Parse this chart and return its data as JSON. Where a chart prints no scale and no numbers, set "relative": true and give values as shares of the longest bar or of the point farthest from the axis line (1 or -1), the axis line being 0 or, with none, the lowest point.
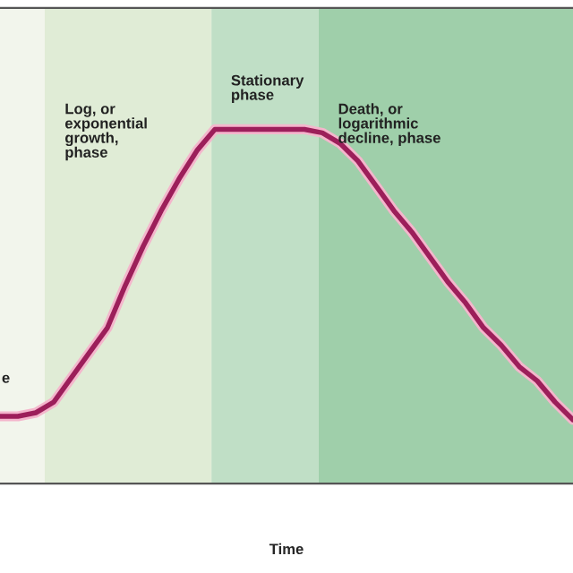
{
  "chart_data": {
    "type": "line",
    "xlabel": "Time",
    "relative": true,
    "legend": false,
    "marker": "none",
    "line_style": "solid",
    "categories": [
      null,
      null,
      null,
      null,
      null,
      null,
      null,
      null,
      null,
      null,
      null,
      null,
      null,
      null,
      null,
      null,
      null,
      null,
      null,
      null,
      null,
      null,
      null,
      null,
      null,
      null,
      null,
      null,
      null,
      null,
      null,
      null,
      null
    ],
    "series": [
      {
        "color": "#9c1f5a",
        "values": [
          0.19,
          0.19,
          0.2,
          0.23,
          0.3,
          0.37,
          0.44,
          0.56,
          0.67,
          0.77,
          0.86,
          0.94,
          1,
          1,
          1,
          1,
          1,
          1,
          0.99,
          0.96,
          0.91,
          0.84,
          0.77,
          0.71,
          0.64,
          0.57,
          0.51,
          0.44,
          0.39,
          0.33,
          0.29,
          0.23,
          0.18
        ]
      }
    ],
    "annotations": [
      "e",
      "Log, or\nexponential\ngrowth,\nphase",
      "Stationary\nphase",
      "Death, or\nlogarithmic\ndecline, phase"
    ]
  }
}
